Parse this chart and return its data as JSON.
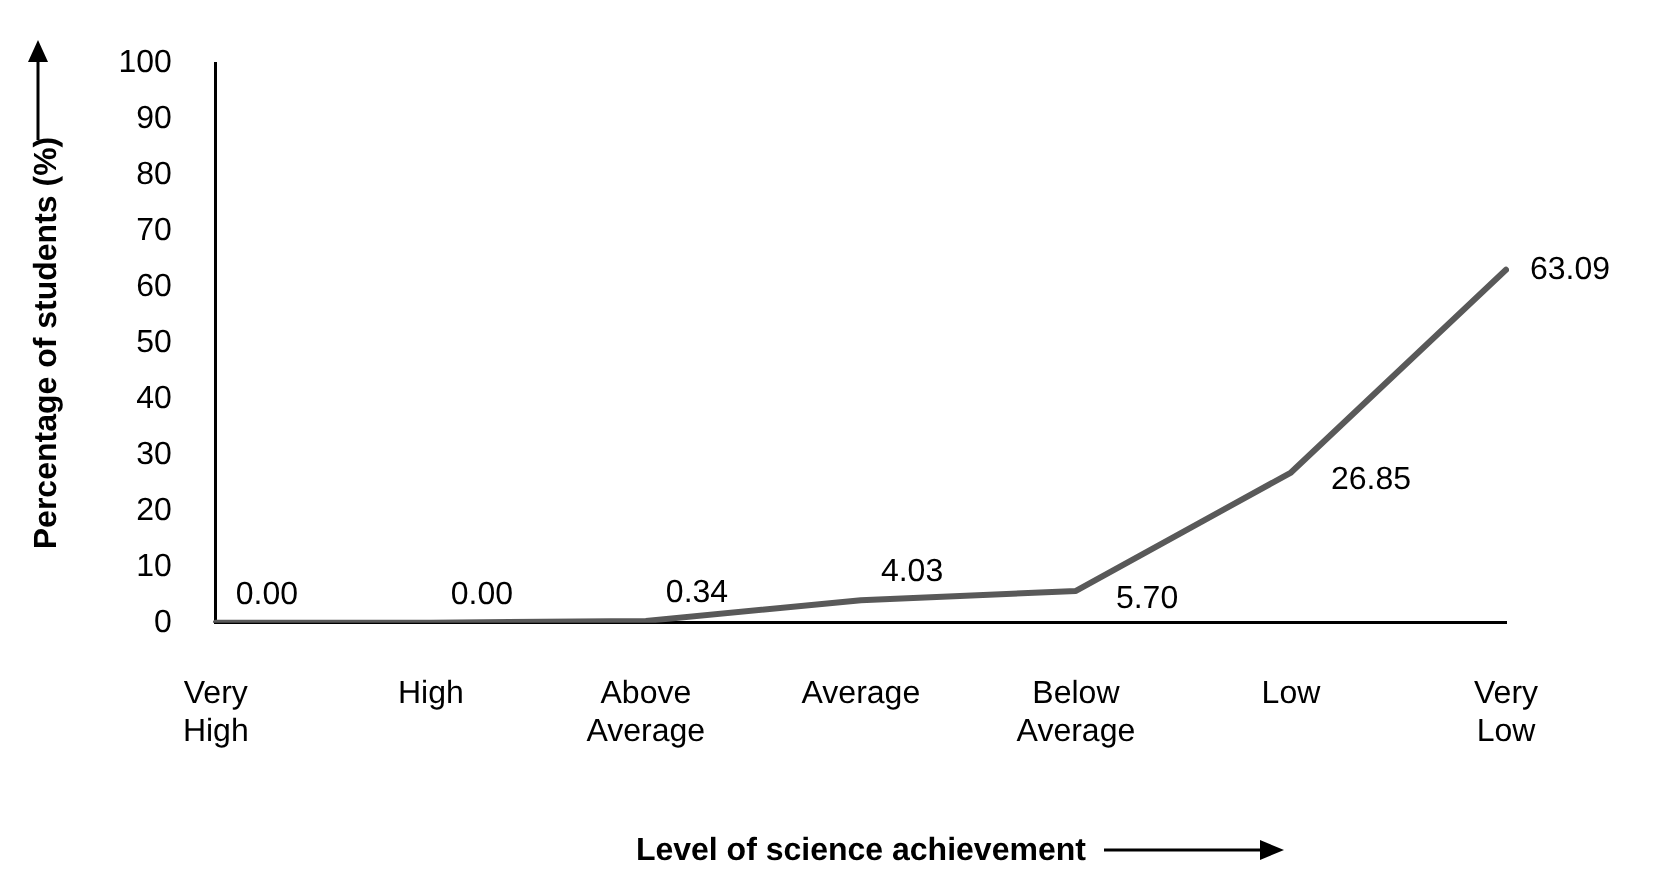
{
  "chart_data": {
    "type": "line",
    "xlabel": "Level of science achievement",
    "ylabel": "Percentage of students (%)",
    "categories": [
      "Very High",
      "High",
      "Above Average",
      "Average",
      "Below Average",
      "Low",
      "Very Low"
    ],
    "series": [
      {
        "color": "#595959",
        "values": [
          0.0,
          0.0,
          0.34,
          4.03,
          5.7,
          26.85,
          63.09
        ],
        "value_labels": [
          "0.00",
          "0.00",
          "0.34",
          "4.03",
          "5.70",
          "26.85",
          "63.09"
        ]
      }
    ],
    "ylim": [
      0,
      100
    ],
    "yticks": [
      0,
      10,
      20,
      30,
      40,
      50,
      60,
      70,
      80,
      90,
      100
    ],
    "grid": false,
    "legend": false,
    "marker": "none",
    "line_style": "solid"
  }
}
